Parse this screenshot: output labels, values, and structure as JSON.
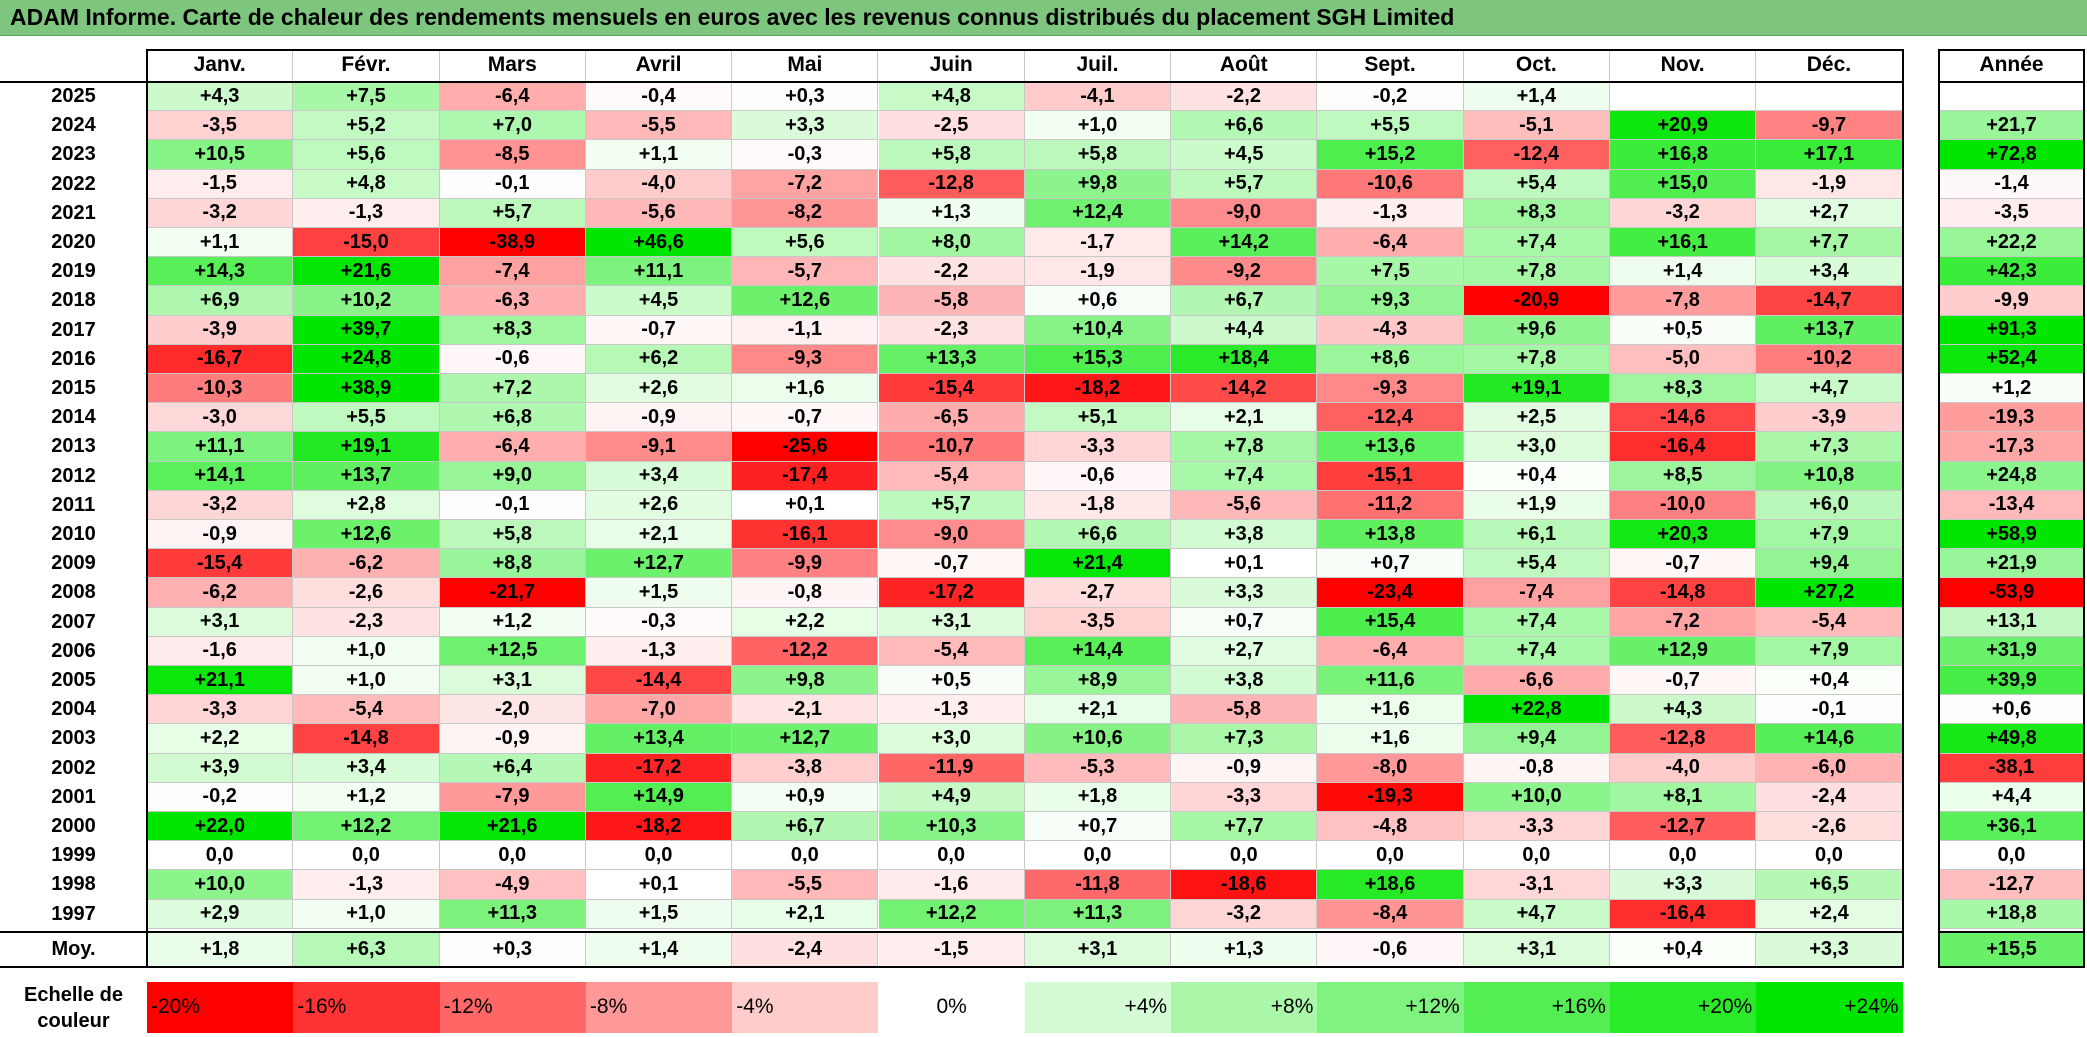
{
  "title": "ADAM Informe. Carte de chaleur des rendements mensuels en euros avec les revenus connus distribués du placement SGH Limited",
  "chart_data": {
    "type": "heatmap",
    "months": [
      "Janv.",
      "Févr.",
      "Mars",
      "Avril",
      "Mai",
      "Juin",
      "Juil.",
      "Août",
      "Sept.",
      "Oct.",
      "Nov.",
      "Déc."
    ],
    "year_header": "Année",
    "average_label": "Moy.",
    "scale_label_line1": "Echelle de",
    "scale_label_line2": "couleur",
    "rows": [
      {
        "year": "2025",
        "values": [
          "+4,3",
          "+7,5",
          "-6,4",
          "-0,4",
          "+0,3",
          "+4,8",
          "-4,1",
          "-2,2",
          "-0,2",
          "+1,4",
          "",
          ""
        ],
        "annual": ""
      },
      {
        "year": "2024",
        "values": [
          "-3,5",
          "+5,2",
          "+7,0",
          "-5,5",
          "+3,3",
          "-2,5",
          "+1,0",
          "+6,6",
          "+5,5",
          "-5,1",
          "+20,9",
          "-9,7"
        ],
        "annual": "+21,7"
      },
      {
        "year": "2023",
        "values": [
          "+10,5",
          "+5,6",
          "-8,5",
          "+1,1",
          "-0,3",
          "+5,8",
          "+5,8",
          "+4,5",
          "+15,2",
          "-12,4",
          "+16,8",
          "+17,1"
        ],
        "annual": "+72,8"
      },
      {
        "year": "2022",
        "values": [
          "-1,5",
          "+4,8",
          "-0,1",
          "-4,0",
          "-7,2",
          "-12,8",
          "+9,8",
          "+5,7",
          "-10,6",
          "+5,4",
          "+15,0",
          "-1,9"
        ],
        "annual": "-1,4"
      },
      {
        "year": "2021",
        "values": [
          "-3,2",
          "-1,3",
          "+5,7",
          "-5,6",
          "-8,2",
          "+1,3",
          "+12,4",
          "-9,0",
          "-1,3",
          "+8,3",
          "-3,2",
          "+2,7"
        ],
        "annual": "-3,5"
      },
      {
        "year": "2020",
        "values": [
          "+1,1",
          "-15,0",
          "-38,9",
          "+46,6",
          "+5,6",
          "+8,0",
          "-1,7",
          "+14,2",
          "-6,4",
          "+7,4",
          "+16,1",
          "+7,7"
        ],
        "annual": "+22,2"
      },
      {
        "year": "2019",
        "values": [
          "+14,3",
          "+21,6",
          "-7,4",
          "+11,1",
          "-5,7",
          "-2,2",
          "-1,9",
          "-9,2",
          "+7,5",
          "+7,8",
          "+1,4",
          "+3,4"
        ],
        "annual": "+42,3"
      },
      {
        "year": "2018",
        "values": [
          "+6,9",
          "+10,2",
          "-6,3",
          "+4,5",
          "+12,6",
          "-5,8",
          "+0,6",
          "+6,7",
          "+9,3",
          "-20,9",
          "-7,8",
          "-14,7"
        ],
        "annual": "-9,9"
      },
      {
        "year": "2017",
        "values": [
          "-3,9",
          "+39,7",
          "+8,3",
          "-0,7",
          "-1,1",
          "-2,3",
          "+10,4",
          "+4,4",
          "-4,3",
          "+9,6",
          "+0,5",
          "+13,7"
        ],
        "annual": "+91,3"
      },
      {
        "year": "2016",
        "values": [
          "-16,7",
          "+24,8",
          "-0,6",
          "+6,2",
          "-9,3",
          "+13,3",
          "+15,3",
          "+18,4",
          "+8,6",
          "+7,8",
          "-5,0",
          "-10,2"
        ],
        "annual": "+52,4"
      },
      {
        "year": "2015",
        "values": [
          "-10,3",
          "+38,9",
          "+7,2",
          "+2,6",
          "+1,6",
          "-15,4",
          "-18,2",
          "-14,2",
          "-9,3",
          "+19,1",
          "+8,3",
          "+4,7"
        ],
        "annual": "+1,2"
      },
      {
        "year": "2014",
        "values": [
          "-3,0",
          "+5,5",
          "+6,8",
          "-0,9",
          "-0,7",
          "-6,5",
          "+5,1",
          "+2,1",
          "-12,4",
          "+2,5",
          "-14,6",
          "-3,9"
        ],
        "annual": "-19,3"
      },
      {
        "year": "2013",
        "values": [
          "+11,1",
          "+19,1",
          "-6,4",
          "-9,1",
          "-25,6",
          "-10,7",
          "-3,3",
          "+7,8",
          "+13,6",
          "+3,0",
          "-16,4",
          "+7,3"
        ],
        "annual": "-17,3"
      },
      {
        "year": "2012",
        "values": [
          "+14,1",
          "+13,7",
          "+9,0",
          "+3,4",
          "-17,4",
          "-5,4",
          "-0,6",
          "+7,4",
          "-15,1",
          "+0,4",
          "+8,5",
          "+10,8"
        ],
        "annual": "+24,8"
      },
      {
        "year": "2011",
        "values": [
          "-3,2",
          "+2,8",
          "-0,1",
          "+2,6",
          "+0,1",
          "+5,7",
          "-1,8",
          "-5,6",
          "-11,2",
          "+1,9",
          "-10,0",
          "+6,0"
        ],
        "annual": "-13,4"
      },
      {
        "year": "2010",
        "values": [
          "-0,9",
          "+12,6",
          "+5,8",
          "+2,1",
          "-16,1",
          "-9,0",
          "+6,6",
          "+3,8",
          "+13,8",
          "+6,1",
          "+20,3",
          "+7,9"
        ],
        "annual": "+58,9"
      },
      {
        "year": "2009",
        "values": [
          "-15,4",
          "-6,2",
          "+8,8",
          "+12,7",
          "-9,9",
          "-0,7",
          "+21,4",
          "+0,1",
          "+0,7",
          "+5,4",
          "-0,7",
          "+9,4"
        ],
        "annual": "+21,9"
      },
      {
        "year": "2008",
        "values": [
          "-6,2",
          "-2,6",
          "-21,7",
          "+1,5",
          "-0,8",
          "-17,2",
          "-2,7",
          "+3,3",
          "-23,4",
          "-7,4",
          "-14,8",
          "+27,2"
        ],
        "annual": "-53,9"
      },
      {
        "year": "2007",
        "values": [
          "+3,1",
          "-2,3",
          "+1,2",
          "-0,3",
          "+2,2",
          "+3,1",
          "-3,5",
          "+0,7",
          "+15,4",
          "+7,4",
          "-7,2",
          "-5,4"
        ],
        "annual": "+13,1"
      },
      {
        "year": "2006",
        "values": [
          "-1,6",
          "+1,0",
          "+12,5",
          "-1,3",
          "-12,2",
          "-5,4",
          "+14,4",
          "+2,7",
          "-6,4",
          "+7,4",
          "+12,9",
          "+7,9"
        ],
        "annual": "+31,9"
      },
      {
        "year": "2005",
        "values": [
          "+21,1",
          "+1,0",
          "+3,1",
          "-14,4",
          "+9,8",
          "+0,5",
          "+8,9",
          "+3,8",
          "+11,6",
          "-6,6",
          "-0,7",
          "+0,4"
        ],
        "annual": "+39,9"
      },
      {
        "year": "2004",
        "values": [
          "-3,3",
          "-5,4",
          "-2,0",
          "-7,0",
          "-2,1",
          "-1,3",
          "+2,1",
          "-5,8",
          "+1,6",
          "+22,8",
          "+4,3",
          "-0,1"
        ],
        "annual": "+0,6"
      },
      {
        "year": "2003",
        "values": [
          "+2,2",
          "-14,8",
          "-0,9",
          "+13,4",
          "+12,7",
          "+3,0",
          "+10,6",
          "+7,3",
          "+1,6",
          "+9,4",
          "-12,8",
          "+14,6"
        ],
        "annual": "+49,8"
      },
      {
        "year": "2002",
        "values": [
          "+3,9",
          "+3,4",
          "+6,4",
          "-17,2",
          "-3,8",
          "-11,9",
          "-5,3",
          "-0,9",
          "-8,0",
          "-0,8",
          "-4,0",
          "-6,0"
        ],
        "annual": "-38,1"
      },
      {
        "year": "2001",
        "values": [
          "-0,2",
          "+1,2",
          "-7,9",
          "+14,9",
          "+0,9",
          "+4,9",
          "+1,8",
          "-3,3",
          "-19,3",
          "+10,0",
          "+8,1",
          "-2,4"
        ],
        "annual": "+4,4"
      },
      {
        "year": "2000",
        "values": [
          "+22,0",
          "+12,2",
          "+21,6",
          "-18,2",
          "+6,7",
          "+10,3",
          "+0,7",
          "+7,7",
          "-4,8",
          "-3,3",
          "-12,7",
          "-2,6"
        ],
        "annual": "+36,1"
      },
      {
        "year": "1999",
        "values": [
          "0,0",
          "0,0",
          "0,0",
          "0,0",
          "0,0",
          "0,0",
          "0,0",
          "0,0",
          "0,0",
          "0,0",
          "0,0",
          "0,0"
        ],
        "annual": "0,0"
      },
      {
        "year": "1998",
        "values": [
          "+10,0",
          "-1,3",
          "-4,9",
          "+0,1",
          "-5,5",
          "-1,6",
          "-11,8",
          "-18,6",
          "+18,6",
          "-3,1",
          "+3,3",
          "+6,5"
        ],
        "annual": "-12,7"
      },
      {
        "year": "1997",
        "values": [
          "+2,9",
          "+1,0",
          "+11,3",
          "+1,5",
          "+2,1",
          "+12,2",
          "+11,3",
          "-3,2",
          "-8,4",
          "+4,7",
          "-16,4",
          "+2,4"
        ],
        "annual": "+18,8"
      }
    ],
    "average": {
      "values": [
        "+1,8",
        "+6,3",
        "+0,3",
        "+1,4",
        "-2,4",
        "-1,5",
        "+3,1",
        "+1,3",
        "-0,6",
        "+3,1",
        "+0,4",
        "+3,3"
      ],
      "annual": "+15,5"
    },
    "scale": [
      {
        "label": "-20%",
        "value": -20,
        "align": "left"
      },
      {
        "label": "-16%",
        "value": -16,
        "align": "left"
      },
      {
        "label": "-12%",
        "value": -12,
        "align": "left"
      },
      {
        "label": "-8%",
        "value": -8,
        "align": "left"
      },
      {
        "label": "-4%",
        "value": -4,
        "align": "left"
      },
      {
        "label": "0%",
        "value": 0,
        "align": "center"
      },
      {
        "label": "+4%",
        "value": 4,
        "align": "right"
      },
      {
        "label": "+8%",
        "value": 8,
        "align": "right"
      },
      {
        "label": "+12%",
        "value": 12,
        "align": "right"
      },
      {
        "label": "+16%",
        "value": 16,
        "align": "right"
      },
      {
        "label": "+20%",
        "value": 20,
        "align": "right"
      },
      {
        "label": "+24%",
        "value": 24,
        "align": "right"
      }
    ],
    "colors": {
      "negative_max": "#ff0000",
      "neutral": "#ffffff",
      "positive_max": "#00e600"
    }
  }
}
